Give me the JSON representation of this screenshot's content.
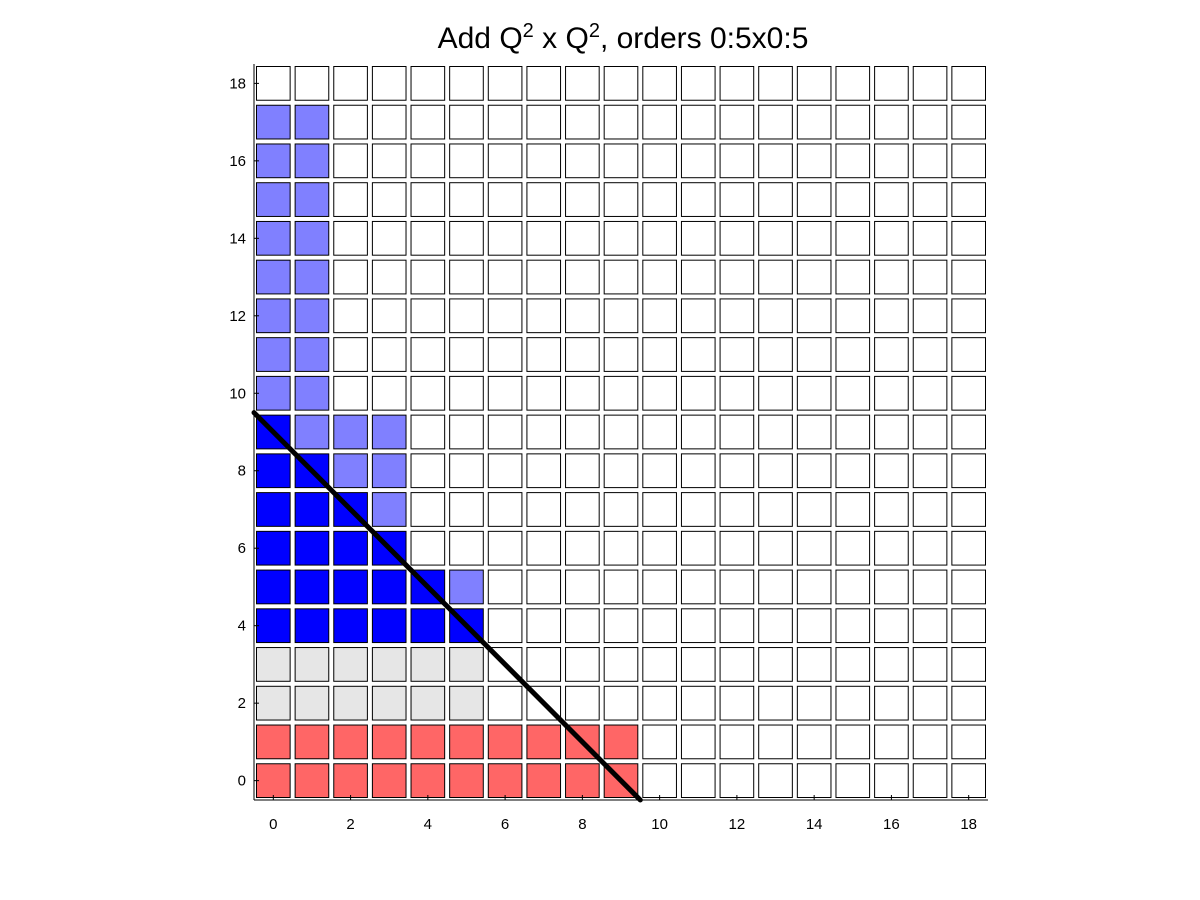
{
  "chart_data": {
    "type": "heatmap",
    "title": {
      "base": "Add Q",
      "sup1": "2",
      "mid": " x Q",
      "sup2": "2",
      "rest": ", orders 0:5x0:5"
    },
    "xlabel": "",
    "ylabel": "",
    "xlim": [
      -0.5,
      18.5
    ],
    "ylim": [
      -0.5,
      18.5
    ],
    "xticks": [
      "0",
      "2",
      "4",
      "6",
      "8",
      "10",
      "12",
      "14",
      "16",
      "18"
    ],
    "yticks": [
      "0",
      "2",
      "4",
      "6",
      "8",
      "10",
      "12",
      "14",
      "16",
      "18"
    ],
    "grid_size": 19,
    "colors": {
      "empty": "#ffffff",
      "red": "#ff6666",
      "gray": "#e6e6e6",
      "blue": "#0000ff",
      "lightblue": "#8080ff",
      "line": "#000000"
    },
    "regions": [
      {
        "color": "red",
        "x": [
          0,
          9
        ],
        "y": [
          0,
          1
        ]
      },
      {
        "color": "gray",
        "x": [
          0,
          5
        ],
        "y": [
          2,
          3
        ]
      },
      {
        "color": "lightblue",
        "x": [
          0,
          1
        ],
        "y": [
          10,
          17
        ]
      }
    ],
    "blue_rows": [
      {
        "y": 4,
        "blue": [
          0,
          5
        ],
        "lightblue": []
      },
      {
        "y": 5,
        "blue": [
          0,
          4
        ],
        "lightblue": [
          5
        ]
      },
      {
        "y": 6,
        "blue": [
          0,
          3
        ],
        "lightblue": []
      },
      {
        "y": 7,
        "blue": [
          0,
          2
        ],
        "lightblue": [
          3
        ]
      },
      {
        "y": 8,
        "blue": [
          0,
          1
        ],
        "lightblue": [
          2,
          3
        ]
      },
      {
        "y": 9,
        "blue": [
          0,
          0
        ],
        "lightblue": [
          1,
          2,
          3
        ]
      }
    ],
    "diagonal": {
      "from": [
        -0.5,
        9.5
      ],
      "to": [
        9.5,
        -0.5
      ]
    }
  }
}
